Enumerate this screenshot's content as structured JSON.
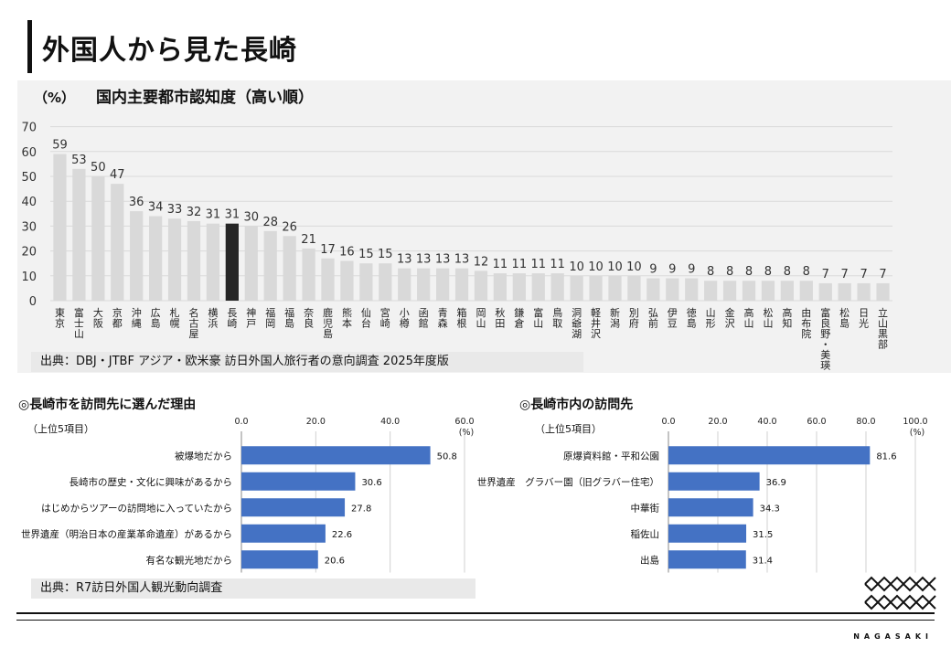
{
  "page": {
    "title": "外国人から見た長崎"
  },
  "main_chart": {
    "unit": "（%）",
    "title": "国内主要都市認知度（高い順）",
    "source": "出典：DBJ・JTBF アジア・欧米豪 訪日外国人旅行者の意向調査 2025年度版"
  },
  "reason_chart": {
    "title": "◎長崎市を訪問先に選んだ理由",
    "note": "（上位5項目）",
    "unit": "(%)",
    "source": "出典：R7訪日外国人観光動向調査"
  },
  "visit_chart": {
    "title": "◎長崎市内の訪問先",
    "note": "（上位5項目）",
    "unit": "(%)"
  },
  "footer": {
    "brand": "NAGASAKI"
  },
  "colors": {
    "bar": "#d9d9d9",
    "highlight": "#262626",
    "blue": "#4472c4",
    "grid": "#d9d9d9"
  },
  "chart_data": [
    {
      "type": "bar",
      "title": "国内主要都市認知度（高い順）",
      "ylabel": "（%）",
      "ylim": [
        0,
        70
      ],
      "yticks": [
        0,
        10,
        20,
        30,
        40,
        50,
        60,
        70
      ],
      "grid": true,
      "highlight": "長崎",
      "categories": [
        "東京",
        "富士山",
        "大阪",
        "京都",
        "沖縄",
        "広島",
        "札幌",
        "名古屋",
        "横浜",
        "長崎",
        "神戸",
        "福岡",
        "福島",
        "奈良",
        "鹿児島",
        "熊本",
        "仙台",
        "宮崎",
        "小樽",
        "函館",
        "青森",
        "箱根",
        "岡山",
        "秋田",
        "鎌倉",
        "富山",
        "鳥取",
        "洞爺湖",
        "軽井沢",
        "新潟",
        "別府",
        "弘前",
        "伊豆",
        "徳島",
        "山形",
        "金沢",
        "高山",
        "松山",
        "高知",
        "由布院",
        "富良野・美瑛",
        "松島",
        "日光",
        "立山黒部"
      ],
      "values": [
        59,
        53,
        50,
        47,
        36,
        34,
        33,
        32,
        31,
        31,
        30,
        28,
        26,
        21,
        17,
        16,
        15,
        15,
        13,
        13,
        13,
        13,
        12,
        11,
        11,
        11,
        11,
        10,
        10,
        10,
        10,
        9,
        9,
        9,
        8,
        8,
        8,
        8,
        8,
        8,
        7,
        7,
        7,
        7
      ]
    },
    {
      "type": "bar",
      "orientation": "horizontal",
      "title": "◎長崎市を訪問先に選んだ理由",
      "xlim": [
        0,
        60
      ],
      "xticks": [
        "0.0",
        "20.0",
        "40.0",
        "60.0"
      ],
      "categories": [
        "被爆地だから",
        "長崎市の歴史・文化に興味があるから",
        "はじめからツアーの訪問地に入っていたから",
        "世界遺産（明治日本の産業革命遺産）があるから",
        "有名な観光地だから"
      ],
      "values": [
        50.8,
        30.6,
        27.8,
        22.6,
        20.6
      ],
      "labels": [
        "50.8",
        "30.6",
        "27.8",
        "22.6",
        "20.6"
      ]
    },
    {
      "type": "bar",
      "orientation": "horizontal",
      "title": "◎長崎市内の訪問先",
      "xlim": [
        0,
        100
      ],
      "xticks": [
        "0.0",
        "20.0",
        "40.0",
        "60.0",
        "80.0",
        "100.0"
      ],
      "categories": [
        "原爆資料館・平和公園",
        "世界遺産　グラバー園（旧グラバー住宅）",
        "中華街",
        "稲佐山",
        "出島"
      ],
      "values": [
        81.6,
        36.9,
        34.3,
        31.5,
        31.4
      ],
      "labels": [
        "81.6",
        "36.9",
        "34.3",
        "31.5",
        "31.4"
      ]
    }
  ]
}
